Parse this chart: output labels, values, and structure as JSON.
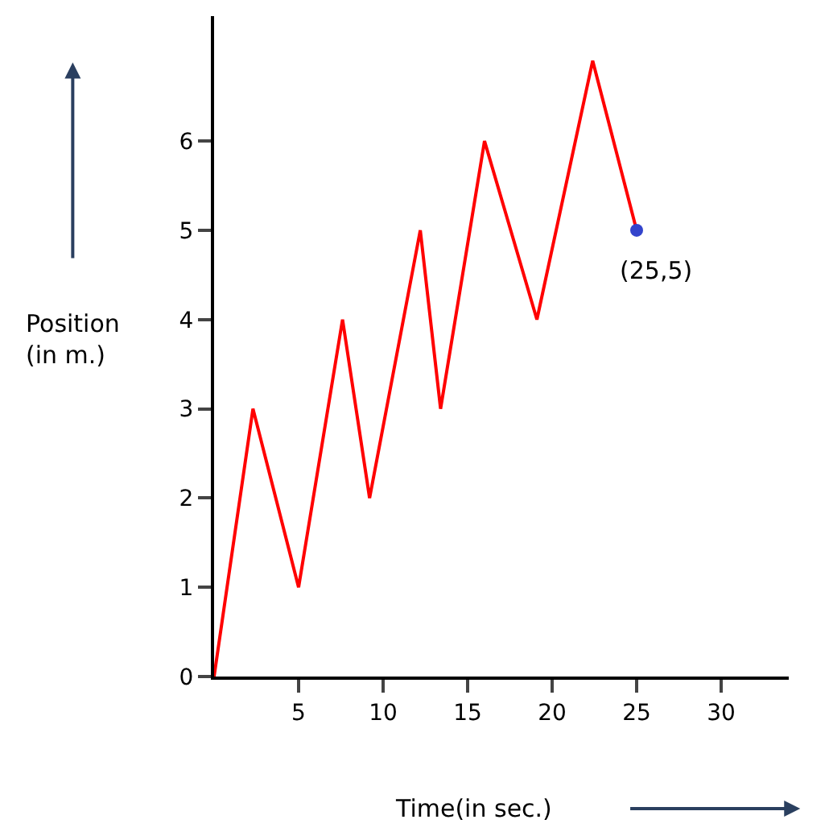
{
  "chart_data": {
    "type": "line",
    "xlabel": "Time(in sec.)",
    "series": [
      {
        "color": "#ff0000",
        "marker": "none",
        "x": [
          0,
          2.3,
          5,
          7.6,
          9.2,
          12.2,
          13.4,
          16,
          19.1,
          22.4,
          25
        ],
        "values": [
          0,
          3,
          1,
          4,
          2,
          5,
          3,
          6,
          4,
          6.9,
          5
        ]
      },
      {
        "type": "scatter",
        "color": "#3344cc",
        "marker": "circle",
        "x": [
          25
        ],
        "values": [
          5
        ]
      }
    ],
    "annotations": [
      {
        "text": "(25,5)",
        "x": 25,
        "y": 5
      },
      "Position\n(in m.)"
    ],
    "xlim": [
      0,
      34
    ],
    "xticks": [
      5,
      10,
      15,
      20,
      25,
      30
    ],
    "ylim": [
      0,
      7.4
    ],
    "yticks": [
      0,
      1,
      2,
      3,
      4,
      5,
      6
    ],
    "legend": false
  }
}
